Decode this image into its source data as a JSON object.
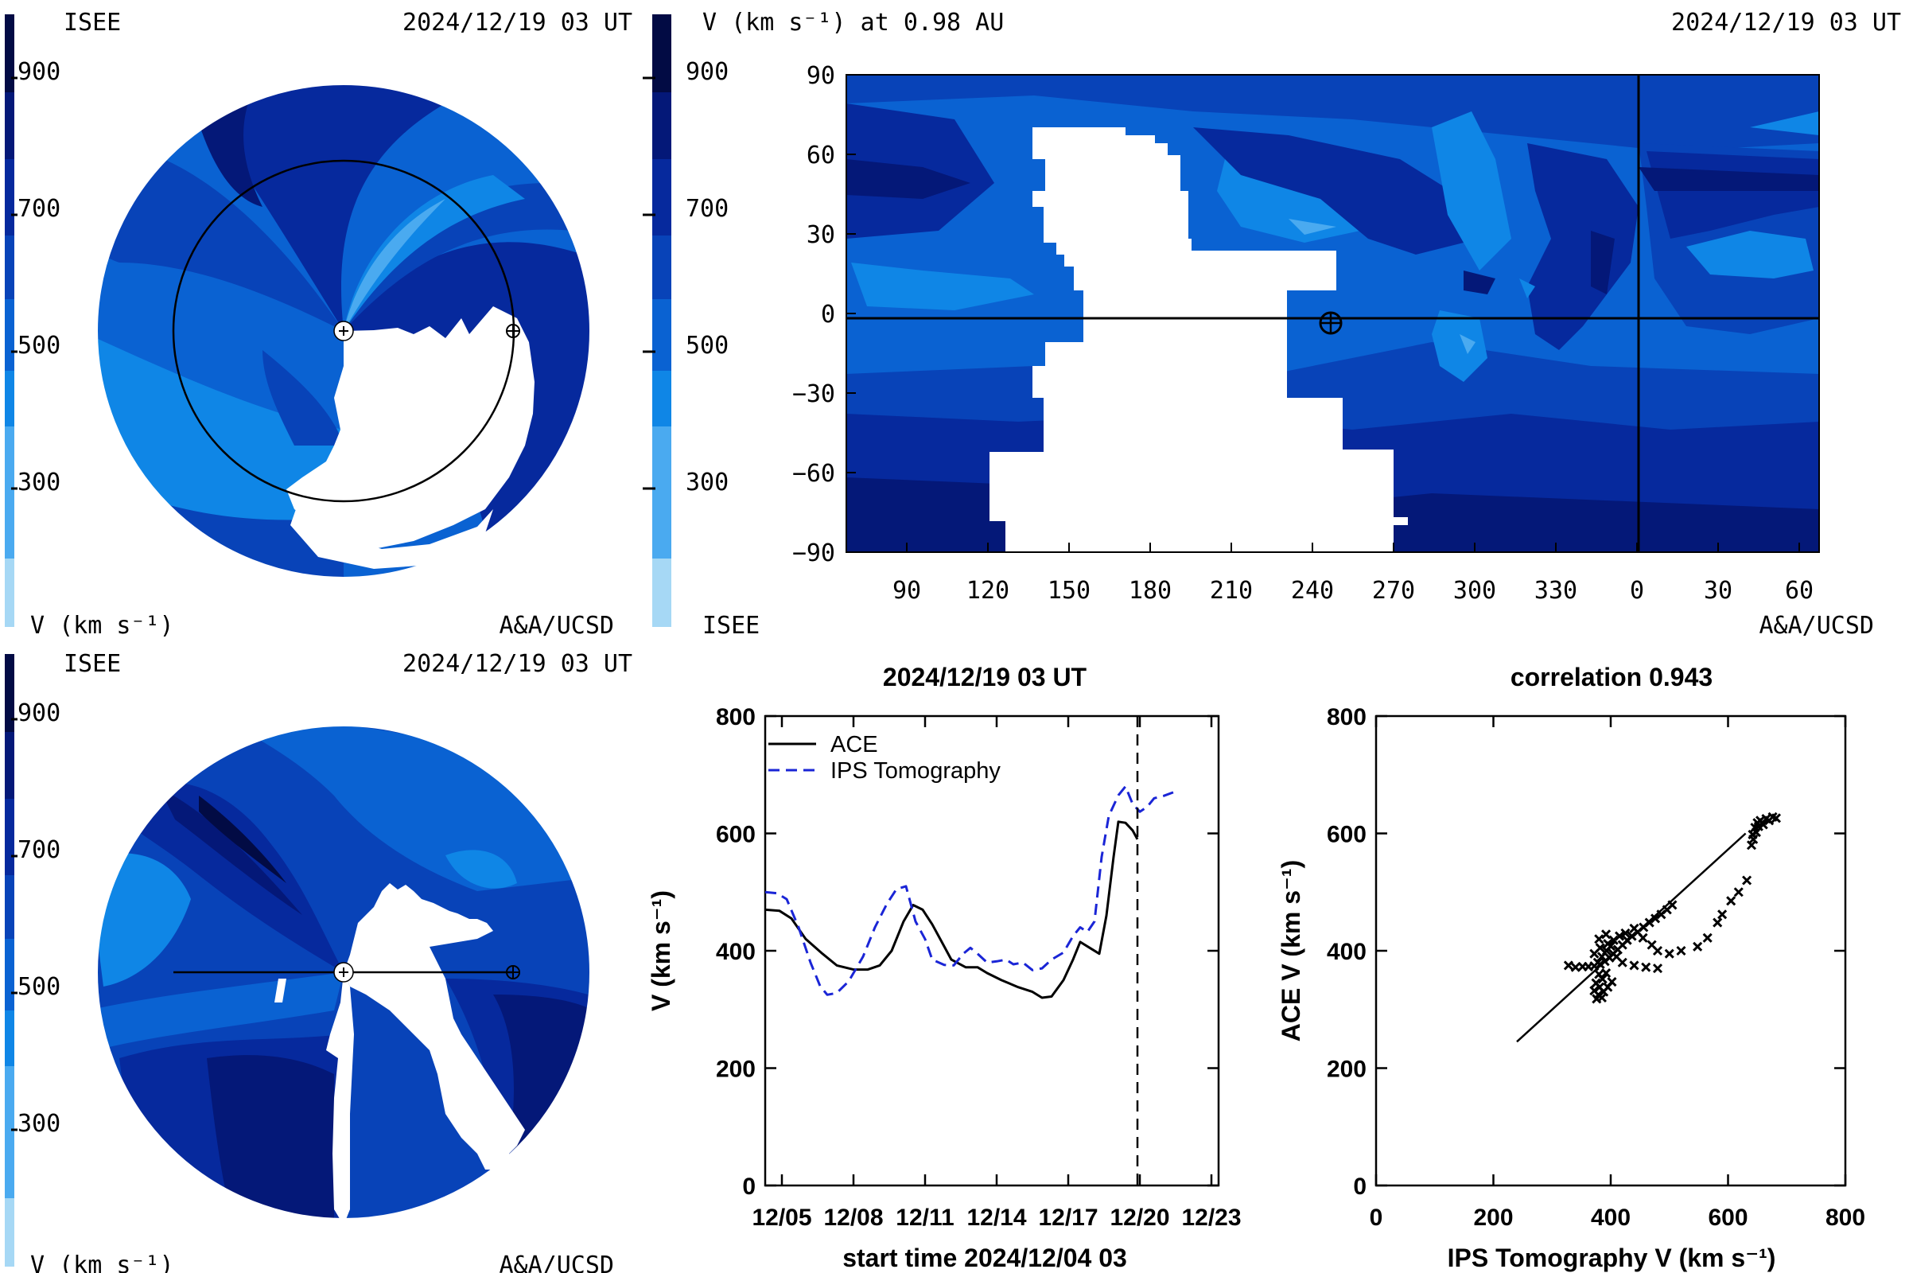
{
  "panel_top_left": {
    "org": "ISEE",
    "timestamp": "2024/12/19 03 UT",
    "colorbar_ticks": [
      "900",
      "700",
      "500",
      "300"
    ],
    "colorbar_label": "V (km s⁻¹)",
    "credit": "A&A/UCSD"
  },
  "panel_top_right": {
    "title": "V (km s⁻¹) at 0.98 AU",
    "timestamp": "2024/12/19 03 UT",
    "colorbar_ticks": [
      "900",
      "700",
      "500",
      "300"
    ],
    "org": "ISEE",
    "credit": "A&A/UCSD",
    "y_ticks": [
      "90",
      "60",
      "30",
      "0",
      "−30",
      "−60",
      "−90"
    ],
    "x_ticks": [
      "90",
      "120",
      "150",
      "180",
      "210",
      "240",
      "270",
      "300",
      "330",
      "0",
      "30",
      "60"
    ]
  },
  "panel_bottom_left": {
    "org": "ISEE",
    "timestamp": "2024/12/19 03 UT",
    "colorbar_ticks": [
      "900",
      "700",
      "500",
      "300"
    ],
    "colorbar_label": "V (km s⁻¹)",
    "credit": "A&A/UCSD"
  },
  "colors": {
    "c0": "#a6d8f5",
    "c1": "#4aaaf0",
    "c2": "#0f86e6",
    "c3": "#0a62d2",
    "c4": "#0843b8",
    "c5": "#06299d",
    "c6": "#041878",
    "c7": "#020b44"
  },
  "chart_data": [
    {
      "type": "line",
      "title": "2024/12/19 03 UT",
      "xlabel": "start time 2024/12/04 03",
      "ylabel": "V (km s⁻¹)",
      "x_ticks": [
        "12/05",
        "12/08",
        "12/11",
        "12/14",
        "12/17",
        "12/20",
        "12/23"
      ],
      "y_ticks": [
        "0",
        "200",
        "400",
        "600",
        "800"
      ],
      "xlim": [
        0.3,
        19.3
      ],
      "ylim": [
        0,
        800
      ],
      "vline_x": 15.9,
      "series": [
        {
          "name": "ACE",
          "color": "#000000",
          "dash": "solid",
          "points": [
            [
              0.3,
              470
            ],
            [
              0.9,
              468
            ],
            [
              1.4,
              455
            ],
            [
              2.0,
              420
            ],
            [
              2.7,
              395
            ],
            [
              3.3,
              375
            ],
            [
              4.0,
              368
            ],
            [
              4.6,
              368
            ],
            [
              5.1,
              375
            ],
            [
              5.6,
              400
            ],
            [
              6.1,
              450
            ],
            [
              6.5,
              478
            ],
            [
              6.9,
              470
            ],
            [
              7.3,
              445
            ],
            [
              7.7,
              415
            ],
            [
              8.1,
              385
            ],
            [
              8.7,
              372
            ],
            [
              9.2,
              372
            ],
            [
              9.6,
              362
            ],
            [
              10.2,
              350
            ],
            [
              10.9,
              338
            ],
            [
              11.5,
              330
            ],
            [
              11.9,
              320
            ],
            [
              12.3,
              322
            ],
            [
              12.8,
              350
            ],
            [
              13.2,
              385
            ],
            [
              13.5,
              415
            ],
            [
              13.9,
              405
            ],
            [
              14.3,
              395
            ],
            [
              14.6,
              460
            ],
            [
              14.9,
              560
            ],
            [
              15.1,
              620
            ],
            [
              15.4,
              618
            ],
            [
              15.7,
              605
            ],
            [
              15.9,
              590
            ]
          ]
        },
        {
          "name": "IPS Tomography",
          "color": "#1a25d6",
          "dash": "dashed",
          "points": [
            [
              0.3,
              500
            ],
            [
              0.8,
              498
            ],
            [
              1.2,
              488
            ],
            [
              1.7,
              440
            ],
            [
              2.2,
              380
            ],
            [
              2.6,
              340
            ],
            [
              2.9,
              325
            ],
            [
              3.3,
              328
            ],
            [
              3.8,
              348
            ],
            [
              4.4,
              390
            ],
            [
              4.9,
              440
            ],
            [
              5.4,
              480
            ],
            [
              5.8,
              505
            ],
            [
              6.2,
              510
            ],
            [
              6.6,
              450
            ],
            [
              7.0,
              420
            ],
            [
              7.3,
              385
            ],
            [
              7.8,
              376
            ],
            [
              8.2,
              375
            ],
            [
              8.6,
              395
            ],
            [
              8.9,
              405
            ],
            [
              9.2,
              395
            ],
            [
              9.6,
              380
            ],
            [
              10.0,
              382
            ],
            [
              10.4,
              385
            ],
            [
              10.7,
              377
            ],
            [
              11.1,
              380
            ],
            [
              11.5,
              367
            ],
            [
              11.9,
              370
            ],
            [
              12.3,
              385
            ],
            [
              12.8,
              397
            ],
            [
              13.2,
              425
            ],
            [
              13.5,
              440
            ],
            [
              13.8,
              432
            ],
            [
              14.1,
              450
            ],
            [
              14.4,
              560
            ],
            [
              14.7,
              630
            ],
            [
              15.1,
              665
            ],
            [
              15.4,
              680
            ],
            [
              15.7,
              650
            ],
            [
              16.0,
              637
            ],
            [
              16.3,
              645
            ],
            [
              16.6,
              660
            ],
            [
              17.0,
              664
            ],
            [
              17.4,
              670
            ]
          ]
        }
      ]
    },
    {
      "type": "scatter",
      "title": "correlation 0.943",
      "xlabel": "IPS Tomography V (km s⁻¹)",
      "ylabel": "ACE V (km s⁻¹)",
      "x_ticks": [
        "0",
        "200",
        "400",
        "600",
        "800"
      ],
      "y_ticks": [
        "0",
        "200",
        "400",
        "600",
        "800"
      ],
      "xlim": [
        0,
        800
      ],
      "ylim": [
        0,
        800
      ],
      "fit_line": [
        [
          240,
          245
        ],
        [
          630,
          600
        ]
      ],
      "points": [
        [
          328,
          375
        ],
        [
          340,
          372
        ],
        [
          352,
          373
        ],
        [
          362,
          373
        ],
        [
          372,
          374
        ],
        [
          382,
          377
        ],
        [
          390,
          382
        ],
        [
          398,
          388
        ],
        [
          404,
          395
        ],
        [
          412,
          402
        ],
        [
          420,
          410
        ],
        [
          428,
          418
        ],
        [
          436,
          425
        ],
        [
          446,
          432
        ],
        [
          456,
          440
        ],
        [
          466,
          448
        ],
        [
          476,
          455
        ],
        [
          486,
          462
        ],
        [
          496,
          470
        ],
        [
          505,
          478
        ],
        [
          378,
          380
        ],
        [
          385,
          390
        ],
        [
          393,
          400
        ],
        [
          400,
          408
        ],
        [
          380,
          360
        ],
        [
          386,
          352
        ],
        [
          375,
          345
        ],
        [
          381,
          338
        ],
        [
          372,
          332
        ],
        [
          379,
          325
        ],
        [
          385,
          320
        ],
        [
          376,
          318
        ],
        [
          388,
          330
        ],
        [
          395,
          338
        ],
        [
          402,
          347
        ],
        [
          392,
          362
        ],
        [
          372,
          395
        ],
        [
          382,
          405
        ],
        [
          395,
          412
        ],
        [
          405,
          418
        ],
        [
          415,
          425
        ],
        [
          425,
          430
        ],
        [
          440,
          438
        ],
        [
          455,
          422
        ],
        [
          470,
          410
        ],
        [
          480,
          400
        ],
        [
          380,
          420
        ],
        [
          392,
          428
        ],
        [
          410,
          390
        ],
        [
          420,
          380
        ],
        [
          440,
          375
        ],
        [
          460,
          372
        ],
        [
          480,
          370
        ],
        [
          500,
          395
        ],
        [
          520,
          400
        ],
        [
          548,
          407
        ],
        [
          565,
          422
        ],
        [
          582,
          448
        ],
        [
          590,
          462
        ],
        [
          605,
          485
        ],
        [
          618,
          500
        ],
        [
          632,
          520
        ],
        [
          640,
          580
        ],
        [
          642,
          598
        ],
        [
          646,
          610
        ],
        [
          650,
          618
        ],
        [
          655,
          622
        ],
        [
          660,
          615
        ],
        [
          665,
          625
        ],
        [
          670,
          622
        ],
        [
          676,
          628
        ],
        [
          682,
          626
        ],
        [
          643,
          590
        ],
        [
          648,
          602
        ],
        [
          652,
          612
        ]
      ]
    }
  ]
}
